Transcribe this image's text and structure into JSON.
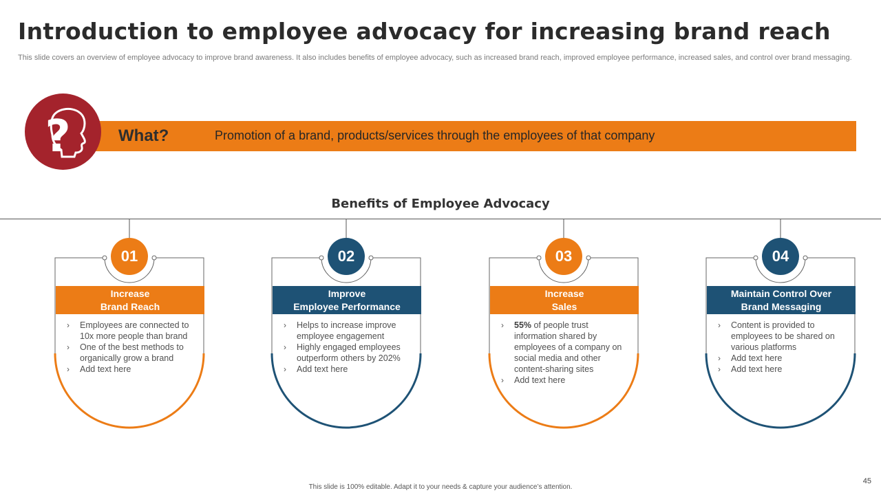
{
  "slide": {
    "title": "Introduction to employee advocacy for increasing brand reach",
    "subtitle": "This slide covers an overview of employee advocacy to improve brand awareness. It also includes benefits of employee advocacy, such as increased brand reach, improved employee performance, increased sales, and control over brand messaging.",
    "page_number": "45",
    "footer": "This slide is 100% editable.  Adapt it to your needs & capture your audience’s attention."
  },
  "what": {
    "label": "What?",
    "text": "Promotion of a brand, products/services through the employees of that company",
    "icon": "question-head-icon"
  },
  "benefits": {
    "title": "Benefits of Employee Advocacy",
    "cards": [
      {
        "number": "01",
        "heading_line1": "Increase",
        "heading_line2": "Brand Reach",
        "bullets": [
          {
            "bold": "",
            "text": "Employees are connected to 10x more people than brand"
          },
          {
            "bold": "",
            "text": "One of the best methods to organically grow a brand"
          },
          {
            "bold": "",
            "text": "Add text here"
          }
        ]
      },
      {
        "number": "02",
        "heading_line1": "Improve",
        "heading_line2": "Employee Performance",
        "bullets": [
          {
            "bold": "",
            "text": "Helps to increase improve  employee engagement"
          },
          {
            "bold": "",
            "text": "Highly engaged employees outperform others by  202%"
          },
          {
            "bold": "",
            "text": "Add text here"
          }
        ]
      },
      {
        "number": "03",
        "heading_line1": "Increase",
        "heading_line2": "Sales",
        "bullets": [
          {
            "bold": "55%",
            "text": " of people trust information shared by employees of a company on social media and other content-sharing sites"
          },
          {
            "bold": "",
            "text": "Add text here"
          }
        ]
      },
      {
        "number": "04",
        "heading_line1": "Maintain Control Over",
        "heading_line2": "Brand Messaging",
        "bullets": [
          {
            "bold": "",
            "text": "Content is provided  to employees to be shared on various  platforms"
          },
          {
            "bold": "",
            "text": "Add text here"
          },
          {
            "bold": "",
            "text": "Add text here"
          }
        ]
      }
    ]
  },
  "colors": {
    "orange": "#ec7c16",
    "blue": "#1e5275",
    "maroon": "#a4232c",
    "bullet_icon": "chevron-right-icon"
  }
}
